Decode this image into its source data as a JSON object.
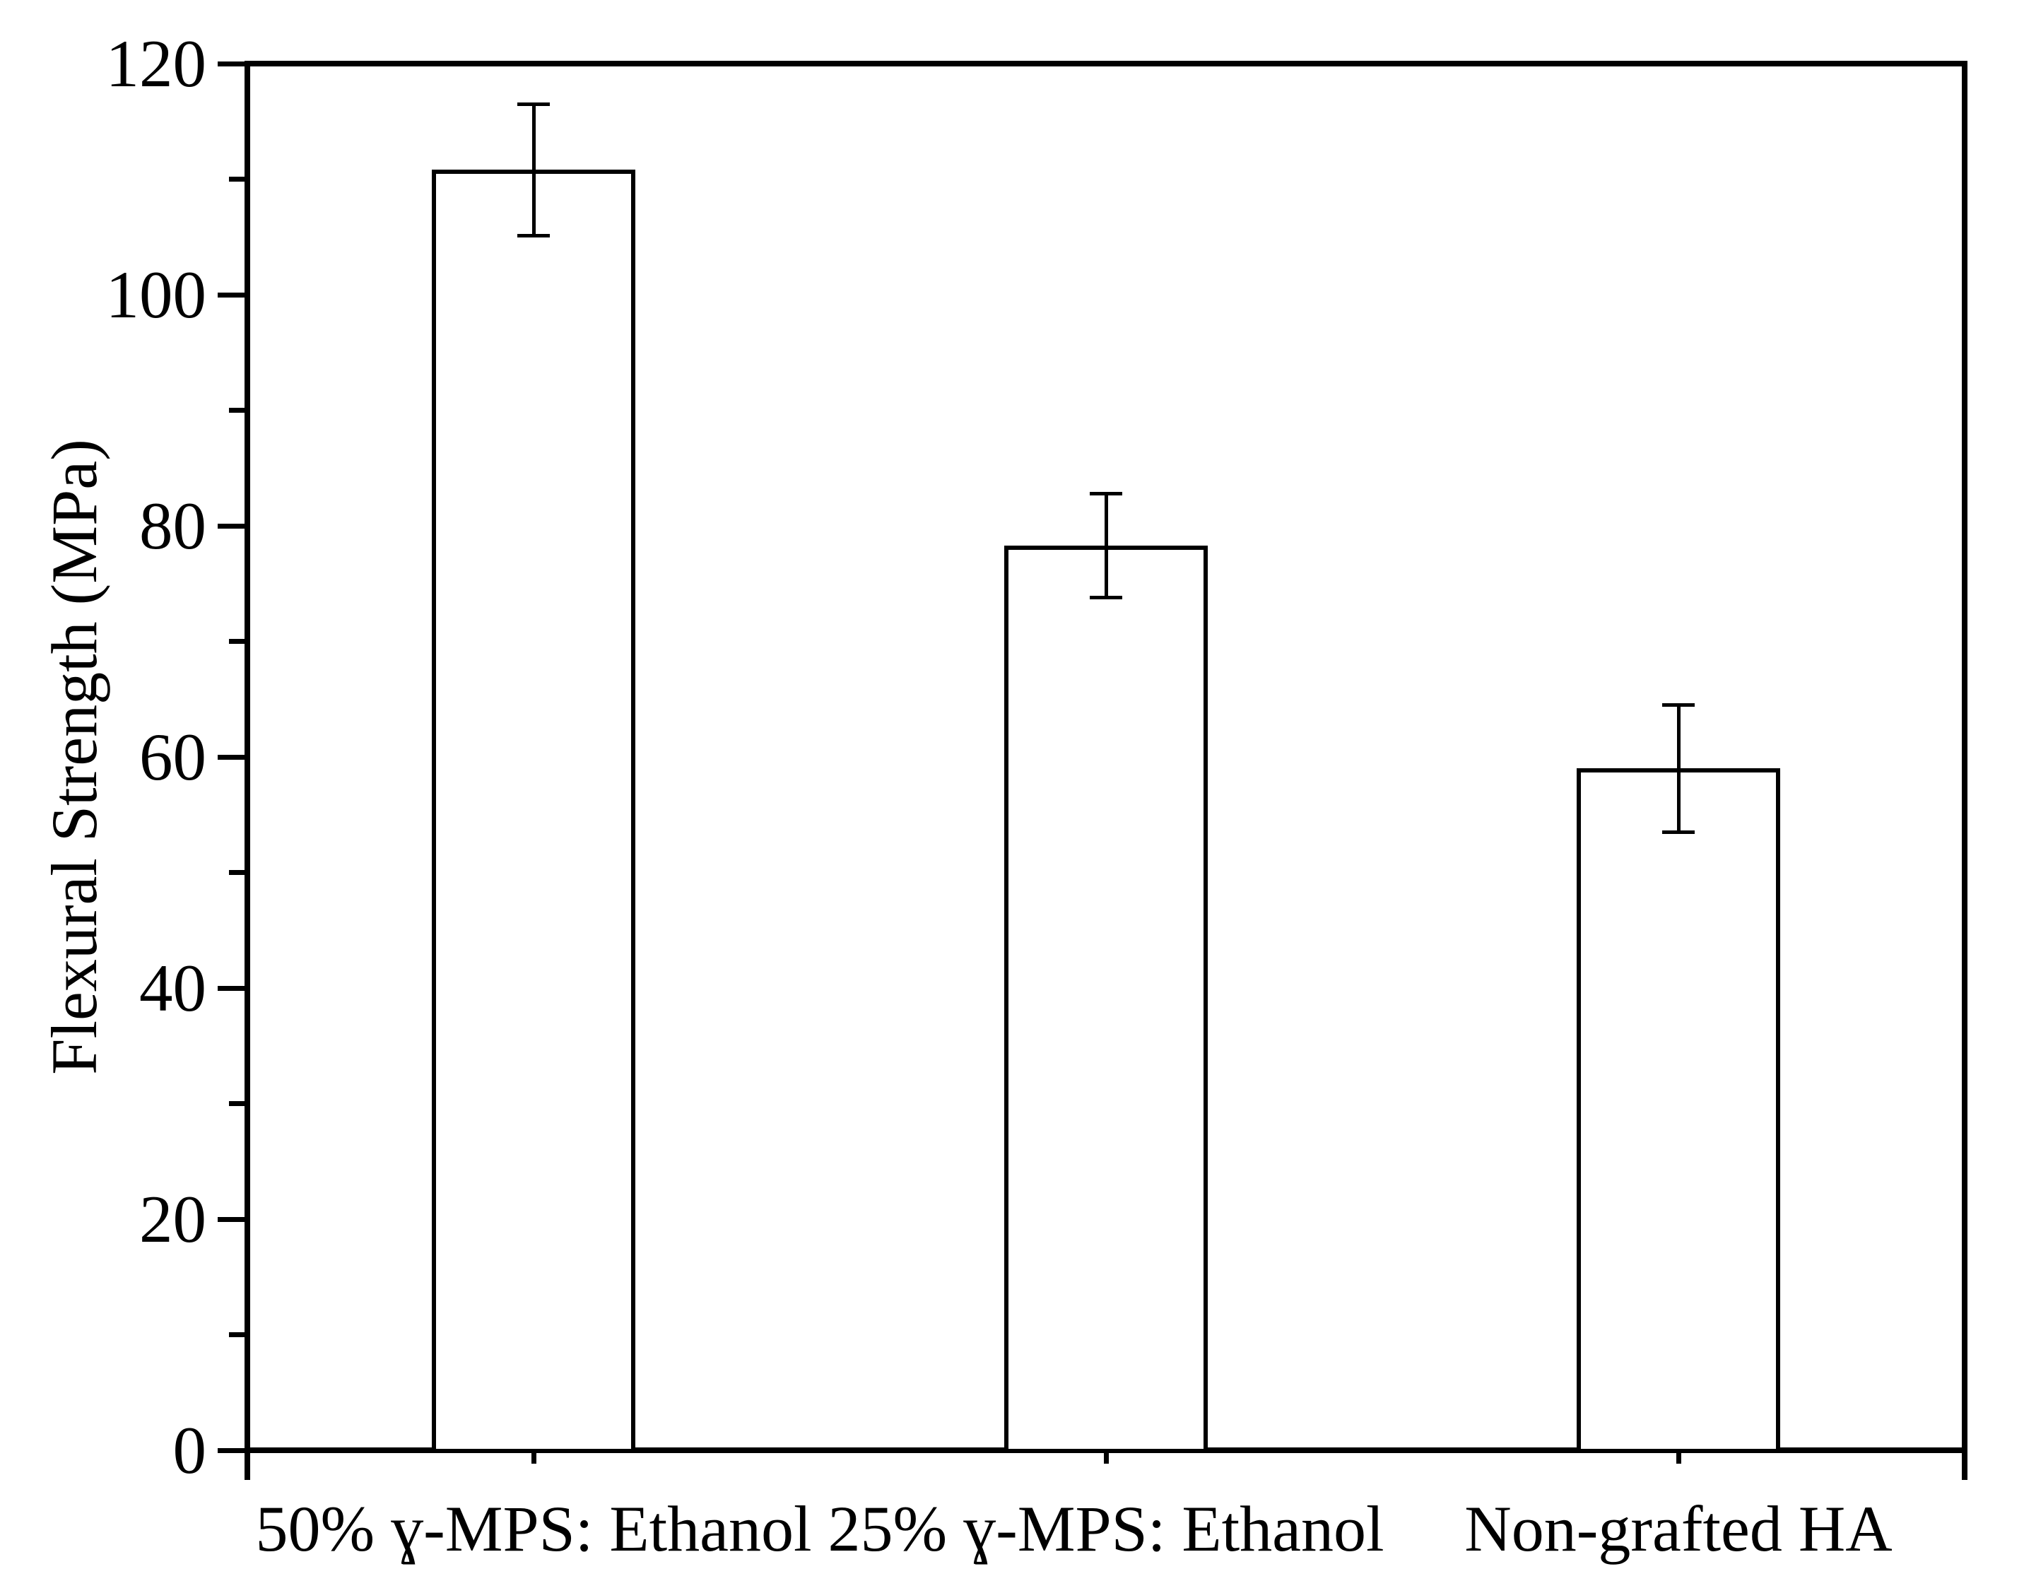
{
  "figure": {
    "background_color": "#ffffff",
    "line_color": "#000000",
    "bar_fill_color": "#ffffff"
  },
  "chart_data": {
    "type": "bar",
    "title": "",
    "xlabel": "",
    "ylabel": "Flexural Strength (MPa)",
    "ylim": [
      0,
      120
    ],
    "grid": false,
    "legend": null,
    "yticks": [
      0,
      20,
      40,
      60,
      80,
      100,
      120
    ],
    "ytick_labels": [
      "0",
      "20",
      "40",
      "60",
      "80",
      "100",
      "120"
    ],
    "yminor_ticks": [
      10,
      30,
      50,
      70,
      90,
      110
    ],
    "categories": [
      "50% ɣ-MPS: Ethanol",
      "25% ɣ-MPS: Ethanol",
      "Non-grafted HA"
    ],
    "series": [
      {
        "name": "Flexural Strength",
        "values": [
          110.8,
          78.3,
          59.0
        ],
        "errors": [
          5.7,
          4.5,
          5.5
        ]
      }
    ]
  }
}
